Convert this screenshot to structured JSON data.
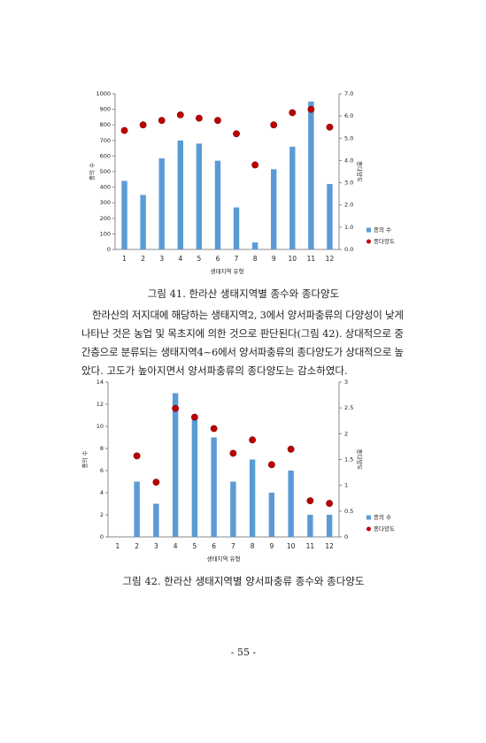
{
  "chart_data": [
    {
      "type": "bar_dot",
      "caption": "그림 41. 한라산 생태지역별 종수와 종다양도",
      "xlabel": "생태지역 유형",
      "ylabel": "종의 수",
      "y2label": "종다양도",
      "categories": [
        "1",
        "2",
        "3",
        "4",
        "5",
        "6",
        "7",
        "8",
        "9",
        "10",
        "11",
        "12"
      ],
      "series": [
        {
          "name": "종의 수",
          "color": "#5b9bd5",
          "values": [
            440,
            350,
            585,
            700,
            680,
            570,
            270,
            45,
            515,
            660,
            950,
            420
          ]
        },
        {
          "name": "종다양도",
          "color": "#c00000",
          "axis": "y2",
          "values": [
            5.35,
            5.6,
            5.8,
            6.05,
            5.9,
            5.8,
            5.2,
            3.8,
            5.6,
            6.15,
            6.3,
            5.5
          ]
        }
      ],
      "ylim": [
        0,
        1000
      ],
      "yticks": [
        0,
        100,
        200,
        300,
        400,
        500,
        600,
        700,
        800,
        900,
        1000
      ],
      "y2lim": [
        0,
        7
      ],
      "y2ticks": [
        {
          "value": 0,
          "label": "0.0"
        },
        {
          "value": 1,
          "label": "1.0"
        },
        {
          "value": 2,
          "label": "2.0"
        },
        {
          "value": 3,
          "label": "3.0"
        },
        {
          "value": 4,
          "label": "4.0"
        },
        {
          "value": 5,
          "label": "5.0"
        },
        {
          "value": 6,
          "label": "6.0"
        },
        {
          "value": 7,
          "label": "7.0"
        }
      ]
    },
    {
      "type": "bar_dot",
      "caption": "그림 42. 한라산 생태지역별 양서파충류 종수와 종다양도",
      "xlabel": "생태지역 유형",
      "ylabel": "종의 수",
      "y2label": "종다양도",
      "categories": [
        "1",
        "2",
        "3",
        "4",
        "5",
        "6",
        "7",
        "8",
        "9",
        "10",
        "11",
        "12"
      ],
      "series": [
        {
          "name": "종의 수",
          "color": "#5b9bd5",
          "values": [
            null,
            5,
            3,
            13,
            11,
            9,
            5,
            7,
            4,
            6,
            2,
            2
          ]
        },
        {
          "name": "종다양도",
          "color": "#c00000",
          "axis": "y2",
          "values": [
            null,
            1.57,
            1.06,
            2.49,
            2.32,
            2.1,
            1.62,
            1.88,
            1.4,
            1.7,
            0.7,
            0.65
          ]
        }
      ],
      "ylim": [
        0,
        14
      ],
      "yticks": [
        0,
        2,
        4,
        6,
        8,
        10,
        12,
        14
      ],
      "y2lim": [
        0,
        3
      ],
      "y2ticks": [
        0,
        0.5,
        1,
        1.5,
        2,
        2.5,
        3
      ]
    }
  ],
  "body": {
    "lines": [
      "한라산의 저지대에 해당하는 생태지역2, 3에서 양서파충류의 다양성이 낮게",
      "나타난 것은 농업 및 목초지에 의한 것으로 판단된다(그림 42). 상대적으로 중",
      "간층으로 분류되는 생태지역4~6에서 양서파충류의 종다양도가 상대적으로 높",
      "았다. 고도가 높아지면서 양서파충류의 종다양도는 감소하였다."
    ]
  },
  "page_number": "- 55 -"
}
